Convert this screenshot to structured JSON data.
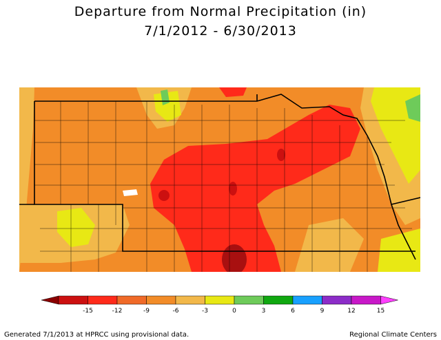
{
  "title": "Departure from Normal Precipitation (in)",
  "subtitle": "7/1/2012 - 6/30/2013",
  "legend": {
    "ticks": [
      "-15",
      "-12",
      "-9",
      "-6",
      "-3",
      "0",
      "3",
      "6",
      "9",
      "12",
      "15"
    ],
    "colors": [
      "#8b0000",
      "#cc1010",
      "#ff2a1a",
      "#f06a28",
      "#f28c28",
      "#f2b84a",
      "#e8e814",
      "#6ecb5a",
      "#10a810",
      "#18a0ff",
      "#8c2cc8",
      "#c818c8",
      "#ff40ff"
    ]
  },
  "colors": {
    "orange": "#f28c28",
    "light_orange": "#f2b84a",
    "yellow": "#e8e814",
    "red": "#ff2a1a",
    "dark_red": "#cc1010",
    "green": "#6ecb5a"
  },
  "footer": {
    "left": "Generated 7/1/2013 at HPRCC using provisional data.",
    "right": "Regional Climate Centers"
  }
}
